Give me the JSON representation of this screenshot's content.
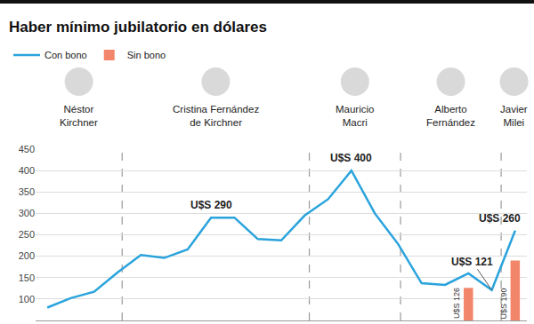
{
  "chart_data": {
    "type": "line",
    "title": "Haber mínimo jubilatorio en dólares",
    "categories": [
      null,
      null,
      null,
      null,
      null,
      null,
      null,
      null,
      null,
      null,
      null,
      null,
      null,
      null,
      null,
      null,
      null,
      null,
      null,
      null,
      null
    ],
    "series": [
      {
        "name": "Con bono",
        "type": "line",
        "color": "#2aa3dc",
        "line_style": "solid",
        "values": [
          80,
          102,
          117,
          162,
          203,
          196,
          216,
          290,
          290,
          240,
          237,
          295,
          333,
          400,
          300,
          228,
          137,
          133,
          160,
          121,
          260
        ]
      },
      {
        "name": "Sin bono",
        "type": "bar",
        "color": "#f2866b",
        "data_labels": true,
        "values": [
          null,
          null,
          null,
          null,
          null,
          null,
          null,
          null,
          null,
          null,
          null,
          null,
          null,
          null,
          null,
          null,
          null,
          null,
          126,
          null,
          190
        ],
        "value_labels": [
          null,
          null,
          null,
          null,
          null,
          null,
          null,
          null,
          null,
          null,
          null,
          null,
          null,
          null,
          null,
          null,
          null,
          null,
          "U$S 126",
          null,
          "U$S 190"
        ]
      }
    ],
    "ylim": [
      50,
      450
    ],
    "yticks": [
      100,
      150,
      200,
      250,
      300,
      350,
      400,
      450
    ],
    "grid": true,
    "legend": "top left",
    "tick_labels": "y",
    "annotations": [
      {
        "text": "U$S 290",
        "index": 7
      },
      {
        "text": "U$S 400",
        "index": 13
      },
      {
        "text": "U$S 121",
        "index": 19
      },
      {
        "text": "U$S 260",
        "index": 20
      }
    ],
    "presidents": [
      "Néstor\nKirchner",
      "Cristina Fernández\nde Kirchner",
      "Mauricio\nMacri",
      "Alberto\nFernández",
      "Javier\nMilei"
    ],
    "dividers": [
      3.2,
      11.2,
      15.1,
      19.4
    ]
  }
}
